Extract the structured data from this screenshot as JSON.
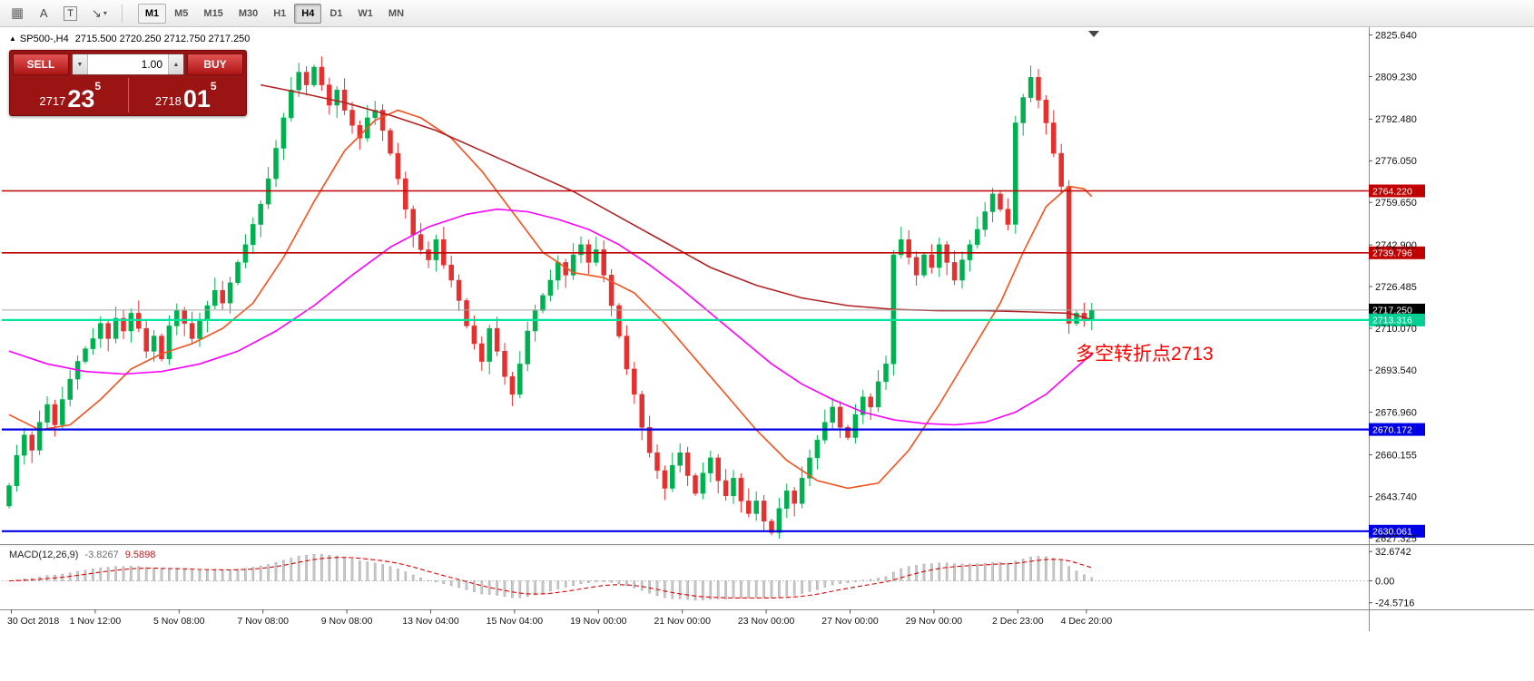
{
  "toolbar": {
    "icons": {
      "grid": "▦",
      "label": "A",
      "text": "T",
      "arrow": "↘",
      "caret": "▾"
    },
    "timeframes": [
      {
        "label": "M1",
        "state": "highlight"
      },
      {
        "label": "M5"
      },
      {
        "label": "M15"
      },
      {
        "label": "M30"
      },
      {
        "label": "H1"
      },
      {
        "label": "H4",
        "state": "active"
      },
      {
        "label": "D1"
      },
      {
        "label": "W1"
      },
      {
        "label": "MN"
      }
    ]
  },
  "chart": {
    "symbol": "SP500-,H4",
    "ohlc": "2715.500 2720.250 2712.750 2717.250"
  },
  "trade": {
    "sell_label": "SELL",
    "buy_label": "BUY",
    "volume": "1.00",
    "sell_price_main": "2717",
    "sell_price_big": "23",
    "sell_price_sup": "5",
    "buy_price_main": "2718",
    "buy_price_big": "01",
    "buy_price_sup": "5"
  },
  "annotation": {
    "text": "多空转折点2713",
    "color": "#ff0000"
  },
  "macd": {
    "title": "MACD(12,26,9)",
    "value": "-3.8267",
    "signal_value": "9.5898",
    "axis": [
      "32.6742",
      "0.00",
      "-24.5716"
    ]
  },
  "chart_data": {
    "type": "candlestick",
    "symbol": "SP500",
    "timeframe": "H4",
    "title": "SP500-,H4",
    "price_range": [
      2625,
      2828
    ],
    "macd_axis_range": [
      -32,
      37
    ],
    "price_axis_ticks": [
      "2825.640",
      "2809.230",
      "2792.480",
      "2776.050",
      "2759.650",
      "2742.900",
      "2726.485",
      "2710.070",
      "2693.540",
      "2676.960",
      "2660.155",
      "2643.740",
      "2627.325"
    ],
    "x_labels": [
      {
        "i": 0,
        "label": "30 Oct 2018"
      },
      {
        "i": 11,
        "label": "1 Nov 12:00"
      },
      {
        "i": 22,
        "label": "5 Nov 08:00"
      },
      {
        "i": 33,
        "label": "7 Nov 08:00"
      },
      {
        "i": 44,
        "label": "9 Nov 08:00"
      },
      {
        "i": 55,
        "label": "13 Nov 04:00"
      },
      {
        "i": 66,
        "label": "15 Nov 04:00"
      },
      {
        "i": 77,
        "label": "19 Nov 00:00"
      },
      {
        "i": 88,
        "label": "21 Nov 00:00"
      },
      {
        "i": 99,
        "label": "23 Nov 00:00"
      },
      {
        "i": 110,
        "label": "27 Nov 00:00"
      },
      {
        "i": 121,
        "label": "29 Nov 00:00"
      },
      {
        "i": 132,
        "label": "2 Dec 23:00"
      },
      {
        "i": 141,
        "label": "4 Dec 20:00"
      }
    ],
    "levels": [
      {
        "price": 2764.22,
        "label": "2764.220",
        "line_color": "#c00000",
        "tag_color": "#c00000",
        "width": 1.6,
        "type": "resistance"
      },
      {
        "price": 2739.796,
        "label": "2739.796",
        "line_color": "#c00000",
        "tag_color": "#c00000",
        "width": 1.6,
        "type": "resistance"
      },
      {
        "price": 2717.25,
        "label": "2717.250",
        "line_color": "#a8a8a8",
        "tag_color": "#000000",
        "width": 1,
        "type": "current-price"
      },
      {
        "price": 2713.316,
        "label": "2713.316",
        "line_color": "#00e5a0",
        "tag_color": "#00cf93",
        "width": 2.2,
        "type": "pivot"
      },
      {
        "price": 2670.172,
        "label": "2670.172",
        "line_color": "#0000e6",
        "tag_color": "#0000e6",
        "width": 2.2,
        "type": "support"
      },
      {
        "price": 2630.061,
        "label": "2630.061",
        "line_color": "#0000e6",
        "tag_color": "#0000e6",
        "width": 2.2,
        "type": "support"
      }
    ],
    "closes": [
      2648,
      2660,
      2668,
      2662,
      2673,
      2680,
      2672,
      2682,
      2690,
      2697,
      2702,
      2706,
      2712,
      2706,
      2714,
      2709,
      2716,
      2710,
      2701,
      2707,
      2698,
      2711,
      2717,
      2712,
      2706,
      2713,
      2719,
      2725,
      2720,
      2728,
      2736,
      2743,
      2751,
      2759,
      2769,
      2781,
      2793,
      2804,
      2811,
      2806,
      2813,
      2806,
      2798,
      2804,
      2796,
      2790,
      2785,
      2793,
      2796,
      2788,
      2779,
      2769,
      2757,
      2747,
      2741,
      2737,
      2745,
      2735,
      2729,
      2721,
      2711,
      2704,
      2697,
      2710,
      2701,
      2691,
      2684,
      2696,
      2709,
      2717,
      2723,
      2729,
      2736,
      2731,
      2739,
      2743,
      2736,
      2741,
      2731,
      2719,
      2707,
      2694,
      2684,
      2671,
      2661,
      2654,
      2647,
      2656,
      2661,
      2652,
      2645,
      2653,
      2659,
      2650,
      2644,
      2651,
      2642,
      2637,
      2642,
      2634,
      2629.5,
      2639,
      2646,
      2641,
      2651,
      2659,
      2666,
      2673,
      2679,
      2671,
      2667,
      2676,
      2683,
      2679,
      2689,
      2696,
      2739,
      2745,
      2738,
      2731,
      2739,
      2734,
      2743,
      2736,
      2729,
      2737,
      2743,
      2749,
      2756,
      2763,
      2757,
      2751,
      2791,
      2801,
      2809,
      2800,
      2791,
      2779,
      2766,
      2712,
      2716,
      2713,
      2717.25
    ],
    "first_open": 2640,
    "ma_lines": [
      {
        "name": "ma-fast-orange",
        "color": "#f4511e",
        "points": [
          [
            0,
            2676
          ],
          [
            4,
            2670
          ],
          [
            8,
            2672
          ],
          [
            12,
            2682
          ],
          [
            16,
            2694
          ],
          [
            20,
            2700
          ],
          [
            24,
            2704
          ],
          [
            28,
            2710
          ],
          [
            32,
            2720
          ],
          [
            36,
            2738
          ],
          [
            40,
            2760
          ],
          [
            44,
            2780
          ],
          [
            48,
            2792
          ],
          [
            51,
            2796
          ],
          [
            54,
            2793
          ],
          [
            58,
            2785
          ],
          [
            62,
            2772
          ],
          [
            66,
            2756
          ],
          [
            70,
            2740
          ],
          [
            74,
            2732
          ],
          [
            78,
            2730
          ],
          [
            82,
            2724
          ],
          [
            86,
            2712
          ],
          [
            90,
            2698
          ],
          [
            94,
            2684
          ],
          [
            98,
            2670
          ],
          [
            102,
            2658
          ],
          [
            106,
            2650
          ],
          [
            110,
            2647
          ],
          [
            114,
            2649
          ],
          [
            118,
            2662
          ],
          [
            122,
            2680
          ],
          [
            126,
            2700
          ],
          [
            130,
            2720
          ],
          [
            133,
            2740
          ],
          [
            136,
            2758
          ],
          [
            139,
            2766
          ],
          [
            141,
            2765
          ],
          [
            142,
            2762
          ]
        ]
      },
      {
        "name": "ma-slow-darkred",
        "color": "#b22222",
        "points": [
          [
            33,
            2806
          ],
          [
            38,
            2803
          ],
          [
            44,
            2799
          ],
          [
            50,
            2794
          ],
          [
            56,
            2788
          ],
          [
            62,
            2780
          ],
          [
            68,
            2772
          ],
          [
            74,
            2764
          ],
          [
            80,
            2754
          ],
          [
            86,
            2744
          ],
          [
            92,
            2734
          ],
          [
            98,
            2727
          ],
          [
            104,
            2722
          ],
          [
            110,
            2719
          ],
          [
            116,
            2717.5
          ],
          [
            122,
            2717
          ],
          [
            128,
            2717
          ],
          [
            134,
            2716.5
          ],
          [
            139,
            2716
          ],
          [
            142,
            2713.5
          ]
        ]
      },
      {
        "name": "ma-slowest-magenta",
        "color": "#ff00ff",
        "points": [
          [
            0,
            2701
          ],
          [
            5,
            2696
          ],
          [
            10,
            2693
          ],
          [
            15,
            2692
          ],
          [
            20,
            2693
          ],
          [
            25,
            2696
          ],
          [
            30,
            2701
          ],
          [
            35,
            2709
          ],
          [
            40,
            2719
          ],
          [
            45,
            2731
          ],
          [
            50,
            2742
          ],
          [
            55,
            2750
          ],
          [
            60,
            2755
          ],
          [
            64,
            2757
          ],
          [
            68,
            2756
          ],
          [
            72,
            2753
          ],
          [
            76,
            2749
          ],
          [
            80,
            2743
          ],
          [
            84,
            2735
          ],
          [
            88,
            2726
          ],
          [
            92,
            2716
          ],
          [
            96,
            2706
          ],
          [
            100,
            2696
          ],
          [
            104,
            2688
          ],
          [
            108,
            2682
          ],
          [
            112,
            2677
          ],
          [
            116,
            2674
          ],
          [
            120,
            2672.5
          ],
          [
            124,
            2672
          ],
          [
            128,
            2673
          ],
          [
            132,
            2677
          ],
          [
            136,
            2684
          ],
          [
            139,
            2692
          ],
          [
            142,
            2700
          ]
        ]
      }
    ],
    "colors": {
      "bull": "#00b050",
      "bear": "#e53030",
      "macd_hist": "#c9c9c9",
      "macd_hist_stroke": "#9a9a9a",
      "macd_signal": "#dd0000"
    }
  }
}
